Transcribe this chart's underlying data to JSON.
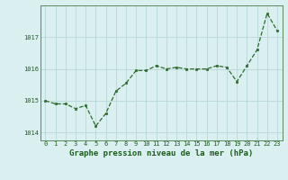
{
  "x": [
    0,
    1,
    2,
    3,
    4,
    5,
    6,
    7,
    8,
    9,
    10,
    11,
    12,
    13,
    14,
    15,
    16,
    17,
    18,
    19,
    20,
    21,
    22,
    23
  ],
  "y": [
    1015.0,
    1014.9,
    1014.9,
    1014.75,
    1014.85,
    1014.2,
    1014.6,
    1015.3,
    1015.55,
    1015.95,
    1015.95,
    1016.1,
    1016.0,
    1016.05,
    1016.0,
    1016.0,
    1016.0,
    1016.1,
    1016.05,
    1015.6,
    1016.1,
    1016.6,
    1017.75,
    1017.2
  ],
  "line_color": "#2d6a2d",
  "marker_color": "#2d6a2d",
  "bg_color": "#daf0f0",
  "grid_color": "#b8d8d8",
  "title": "Graphe pression niveau de la mer (hPa)",
  "title_color": "#1a5c1a",
  "title_fontsize": 6.5,
  "ylim": [
    1013.75,
    1018.0
  ],
  "yticks": [
    1014,
    1015,
    1016,
    1017
  ],
  "xticks": [
    0,
    1,
    2,
    3,
    4,
    5,
    6,
    7,
    8,
    9,
    10,
    11,
    12,
    13,
    14,
    15,
    16,
    17,
    18,
    19,
    20,
    21,
    22,
    23
  ],
  "tick_fontsize": 5.0,
  "spine_color": "#5a8a5a"
}
